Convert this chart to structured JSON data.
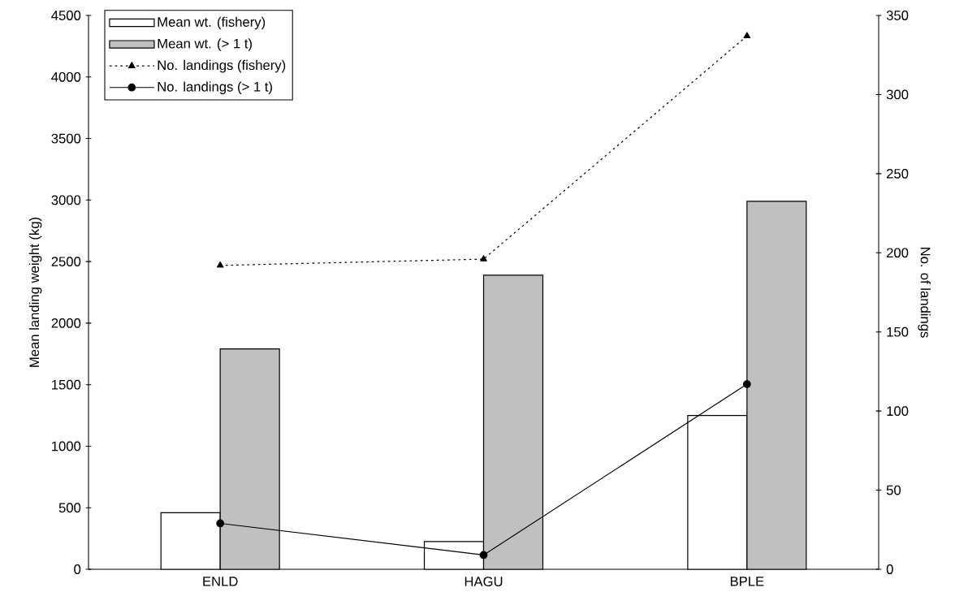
{
  "chart_data": {
    "type": "bar",
    "categories": [
      "ENLD",
      "HAGU",
      "BPLE"
    ],
    "ylabel": "Mean landing weight (kg)",
    "y2label": "No. of landings",
    "ylim": [
      0,
      4500
    ],
    "yticks": [
      0,
      500,
      1000,
      1500,
      2000,
      2500,
      3000,
      3500,
      4000,
      4500
    ],
    "y2lim": [
      0,
      350
    ],
    "y2ticks": [
      0,
      50,
      100,
      150,
      200,
      250,
      300,
      350
    ],
    "legend": "top left",
    "series": [
      {
        "name": "Mean wt. (fishery)",
        "color": "#ffffff",
        "values": [
          460,
          225,
          1250
        ]
      },
      {
        "name": "Mean wt. (> 1 t)",
        "color": "#c0c0c0",
        "values": [
          1790,
          2390,
          2990
        ]
      },
      {
        "name": "No. landings (fishery)",
        "type": "line",
        "axis": "y2",
        "color": "#000000",
        "marker": "triangle",
        "line_style": "dotted",
        "values": [
          192,
          196,
          337
        ]
      },
      {
        "name": "No. landings (> 1 t)",
        "type": "line",
        "axis": "y2",
        "color": "#000000",
        "marker": "circle",
        "line_style": "solid",
        "values": [
          29,
          9,
          117
        ]
      }
    ]
  }
}
